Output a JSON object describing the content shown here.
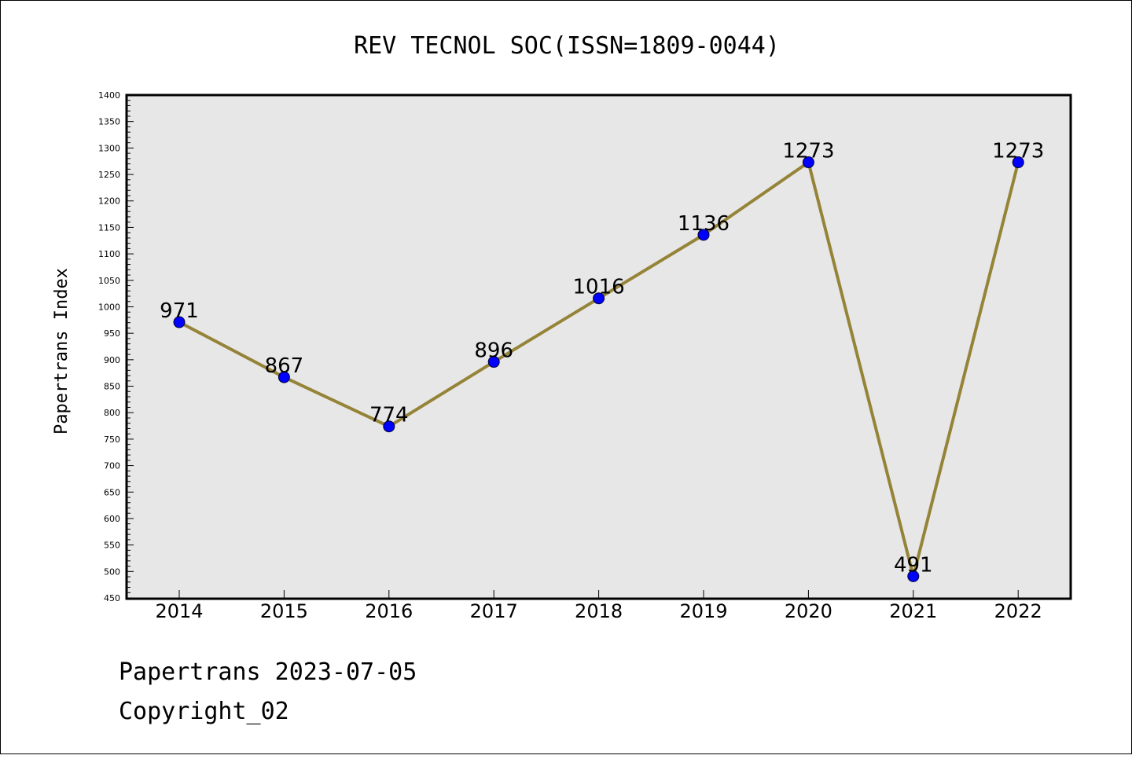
{
  "chart_data": {
    "type": "line",
    "title": "REV TECNOL SOC(ISSN=1809-0044)",
    "xlabel": "",
    "ylabel": "Papertrans Index",
    "categories": [
      "2014",
      "2015",
      "2016",
      "2017",
      "2018",
      "2019",
      "2020",
      "2021",
      "2022"
    ],
    "series": [
      {
        "values": [
          971,
          867,
          774,
          896,
          1016,
          1136,
          1273,
          491,
          1273
        ]
      }
    ],
    "data_labels": [
      "971",
      "867",
      "774",
      "896",
      "1016",
      "1136",
      "1273",
      "491",
      "1273"
    ],
    "ylim": [
      450,
      1400
    ],
    "yticks": [
      450,
      500,
      550,
      600,
      650,
      700,
      750,
      800,
      850,
      900,
      950,
      1000,
      1050,
      1100,
      1150,
      1200,
      1250,
      1300,
      1350,
      1400
    ],
    "ytick_labels": [
      "450",
      "500",
      "550",
      "600",
      "650",
      "700",
      "750",
      "800",
      "850",
      "900",
      "950",
      "1000",
      "1050",
      "1100",
      "1150",
      "1200",
      "1250",
      "1300",
      "1350",
      "1400"
    ],
    "grid": false,
    "legend": "none",
    "colors": {
      "line": "#958438",
      "marker": "#0000ff",
      "plot_background": "#e7e7e7"
    }
  },
  "footer": {
    "line1": "Papertrans 2023-07-05",
    "line2": "Copyright_02"
  }
}
